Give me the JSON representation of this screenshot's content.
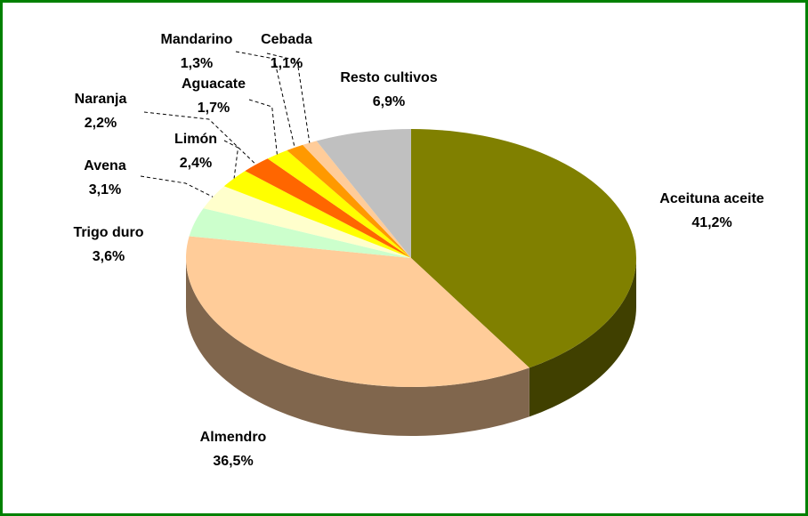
{
  "chart_data": {
    "type": "pie3d",
    "categories": [
      "Aceituna aceite",
      "Almendro",
      "Trigo duro",
      "Avena",
      "Limón",
      "Naranja",
      "Aguacate",
      "Mandarino",
      "Cebada",
      "Resto cultivos"
    ],
    "values": [
      41.2,
      36.5,
      3.6,
      3.1,
      2.4,
      2.2,
      1.7,
      1.3,
      1.1,
      6.9
    ],
    "value_labels": [
      "41,2%",
      "36,5%",
      "3,6%",
      "3,1%",
      "2,4%",
      "2,2%",
      "1,7%",
      "1,3%",
      "1,1%",
      "6,9%"
    ],
    "colors": [
      "#808000",
      "#FFCC99",
      "#CCFFCC",
      "#FFFFCC",
      "#FFFF00",
      "#FF6600",
      "#FFFF00",
      "#FF9900",
      "#FFCC99",
      "#C0C0C0"
    ]
  }
}
